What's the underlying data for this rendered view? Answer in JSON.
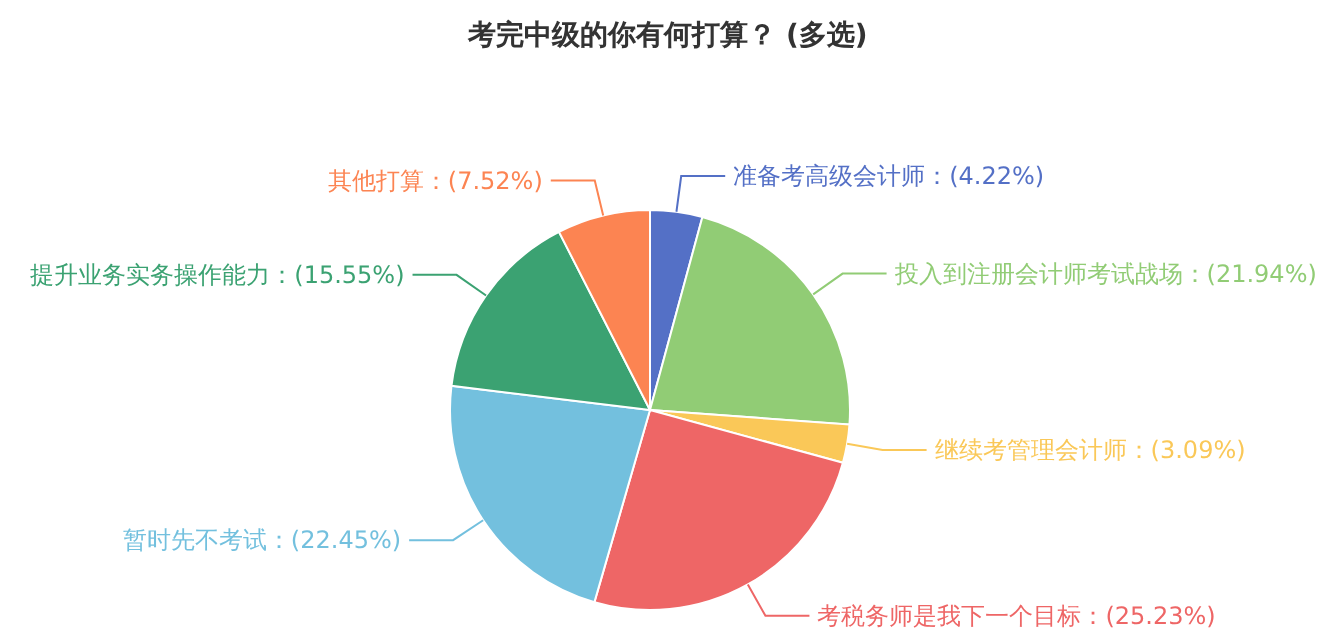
{
  "chart_data": {
    "type": "pie",
    "title": "考完中级的你有何打算？ (多选)",
    "categories": [
      "准备考高级会计师",
      "投入到注册会计师考试战场",
      "继续考管理会计师",
      "考税务师是我下一个目标",
      "暂时先不考试",
      "提升业务实务操作能力",
      "其他打算"
    ],
    "values": [
      4.22,
      21.94,
      3.09,
      25.23,
      22.45,
      15.55,
      7.52
    ],
    "value_labels": [
      "(4.22%)",
      "(21.94%)",
      "(3.09%)",
      "(25.23%)",
      "(22.45%)",
      "(15.55%)",
      "(7.52%)"
    ],
    "colors": [
      "#5470c6",
      "#91cc75",
      "#fac858",
      "#ee6666",
      "#73c0de",
      "#3ba272",
      "#fc8452"
    ]
  }
}
